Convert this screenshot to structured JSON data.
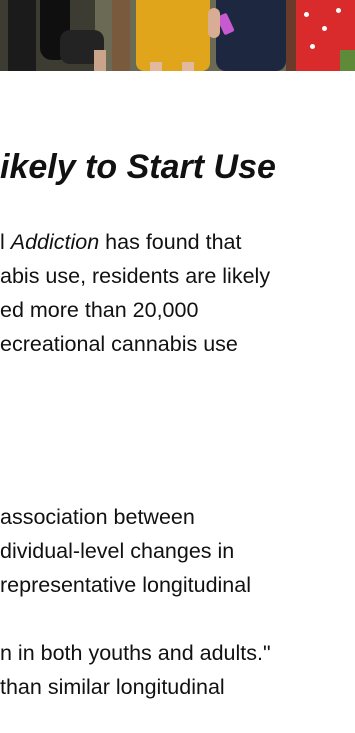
{
  "article": {
    "headline": "ikely to Start Use",
    "intro_lines": [
      {
        "before": "l ",
        "em": "Addiction",
        "after": " has found that"
      },
      {
        "text": "abis use, residents are likely"
      },
      {
        "text": "ed more than 20,000"
      },
      {
        "text": "ecreational cannabis use"
      }
    ],
    "body_lines": [
      {
        "text": " association between"
      },
      {
        "text": "dividual-level changes in"
      },
      {
        "text": "representative longitudinal"
      },
      {
        "text": ""
      },
      {
        "text": "n in both youths and adults.\""
      },
      {
        "text": " than similar longitudinal"
      }
    ]
  },
  "colors": {
    "text": "#111111",
    "background": "#ffffff",
    "hero_bg": "#6b6a55",
    "dress_yellow": "#e0a51b",
    "dress_navy": "#1d2740",
    "dress_red": "#d92b2b",
    "phone_pink": "#c75ad0"
  }
}
